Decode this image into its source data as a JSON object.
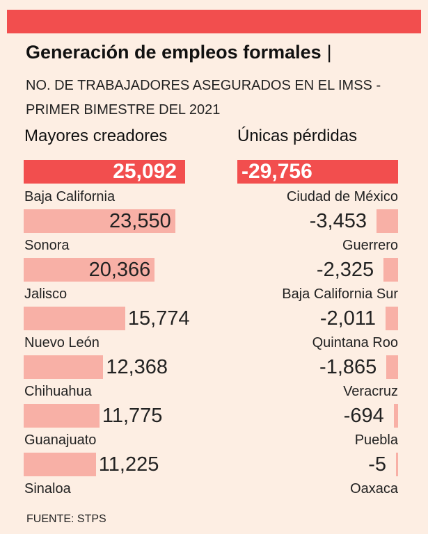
{
  "header": {
    "title": "Generación de empleos formales",
    "title_separator": "|",
    "subtitle": "NO. DE TRABAJADORES ASEGURADOS EN EL IMSS - PRIMER BIMESTRE DEL 2021"
  },
  "colors": {
    "accent": "#f24e4e",
    "bar": "#f8b0a6",
    "background": "#fdeee3"
  },
  "chart_data": [
    {
      "type": "bar",
      "title": "Mayores creadores",
      "highlight_total": 25092,
      "highlight_label": "25,092",
      "categories": [
        "Baja California",
        "Sonora",
        "Jalisco",
        "Nuevo León",
        "Chihuahua",
        "Guanajuato",
        "Sinaloa"
      ],
      "values": [
        25092,
        23550,
        20366,
        15774,
        12368,
        11775,
        11225
      ],
      "value_labels": [
        "25,092",
        "23,550",
        "20,366",
        "15,774",
        "12,368",
        "11,775",
        "11,225"
      ]
    },
    {
      "type": "bar",
      "title": "Únicas pérdidas",
      "highlight_total": -29756,
      "highlight_label": "-29,756",
      "categories": [
        "Ciudad de México",
        "Guerrero",
        "Baja California Sur",
        "Quintana Roo",
        "Veracruz",
        "Puebla",
        "Oaxaca"
      ],
      "values": [
        -29756,
        -3453,
        -2325,
        -2011,
        -1865,
        -694,
        -5
      ],
      "value_labels": [
        "-29,756",
        "-3,453",
        "-2,325",
        "-2,011",
        "-1,865",
        "-694",
        "-5"
      ]
    }
  ],
  "footer": {
    "source": "FUENTE: STPS"
  }
}
